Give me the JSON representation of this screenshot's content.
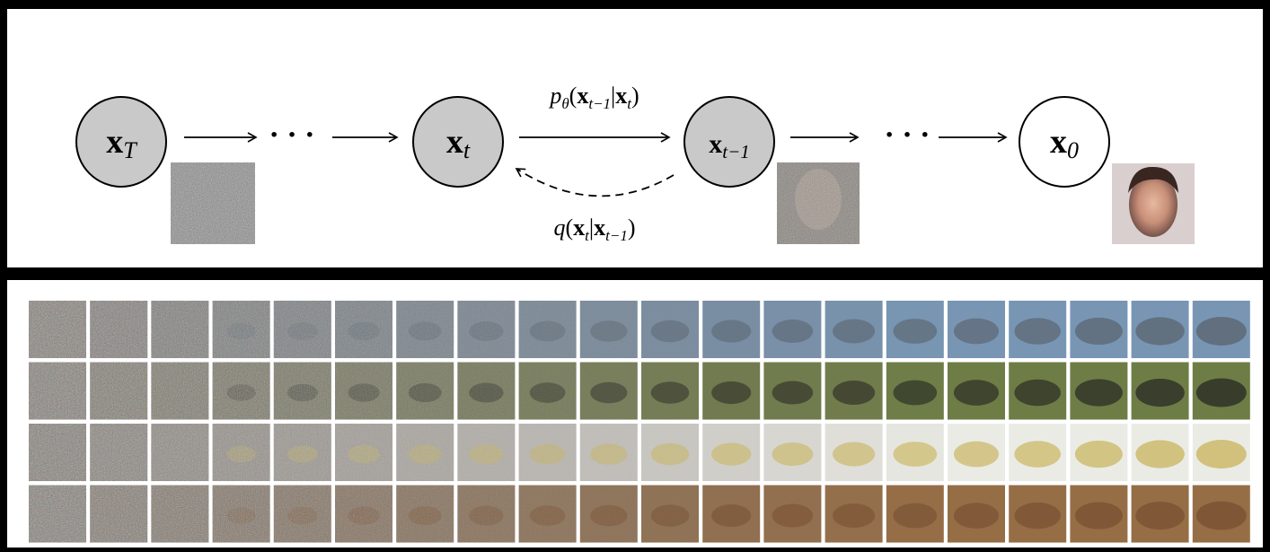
{
  "nodes": [
    {
      "label": {
        "base": "x",
        "sub": "T"
      },
      "observed": false
    },
    {
      "label": {
        "base": "x",
        "sub": "t"
      },
      "observed": false
    },
    {
      "label": {
        "base": "x",
        "sub": "t−1"
      },
      "observed": false
    },
    {
      "label": {
        "base": "x",
        "sub": "0"
      },
      "observed": true
    }
  ],
  "ellipsis": [
    "· · ·",
    "· · ·"
  ],
  "edges": [
    {
      "label": [
        {
          "t": "p",
          "italic": true
        },
        {
          "t": "θ",
          "sub": true,
          "italic": true
        },
        {
          "t": "("
        },
        {
          "t": "x",
          "bold": true
        },
        {
          "t": "t−1",
          "sub": true,
          "italic": true
        },
        {
          "t": "|"
        },
        {
          "t": "x",
          "bold": true
        },
        {
          "t": "t",
          "sub": true,
          "italic": true
        },
        {
          "t": ")"
        }
      ]
    },
    {
      "label": [
        {
          "t": "q",
          "italic": true
        },
        {
          "t": "("
        },
        {
          "t": "x",
          "bold": true
        },
        {
          "t": "t",
          "sub": true,
          "italic": true
        },
        {
          "t": "|"
        },
        {
          "t": "x",
          "bold": true
        },
        {
          "t": "t−1",
          "sub": true,
          "italic": true
        },
        {
          "t": ")"
        }
      ]
    }
  ]
}
